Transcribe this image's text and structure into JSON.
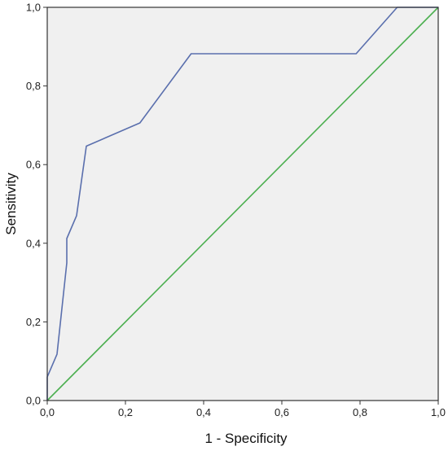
{
  "chart_data": {
    "type": "line",
    "title": "",
    "xlabel": "1 - Specificity",
    "ylabel": "Sensitivity",
    "xlim": [
      0,
      1
    ],
    "ylim": [
      0,
      1
    ],
    "x_ticks": [
      0,
      0.2,
      0.4,
      0.6,
      0.8,
      1.0
    ],
    "y_ticks": [
      0,
      0.2,
      0.4,
      0.6,
      0.8,
      1.0
    ],
    "x_tick_labels": [
      "0,0",
      "0,2",
      "0,4",
      "0,6",
      "0,8",
      "1,0"
    ],
    "y_tick_labels": [
      "0,0",
      "0,2",
      "0,4",
      "0,6",
      "0,8",
      "1,0"
    ],
    "grid": false,
    "legend": "none",
    "background_color": "#f0f0f0",
    "series": [
      {
        "color": "#5a6fad",
        "points": [
          [
            0.0,
            0.0
          ],
          [
            0.0,
            0.06
          ],
          [
            0.025,
            0.118
          ],
          [
            0.05,
            0.35
          ],
          [
            0.05,
            0.412
          ],
          [
            0.075,
            0.47
          ],
          [
            0.1,
            0.647
          ],
          [
            0.237,
            0.706
          ],
          [
            0.368,
            0.882
          ],
          [
            0.79,
            0.882
          ],
          [
            0.895,
            1.0
          ],
          [
            1.0,
            1.0
          ]
        ]
      },
      {
        "color": "#4caf50",
        "points": [
          [
            0.0,
            0.0
          ],
          [
            1.0,
            1.0
          ]
        ]
      }
    ]
  }
}
